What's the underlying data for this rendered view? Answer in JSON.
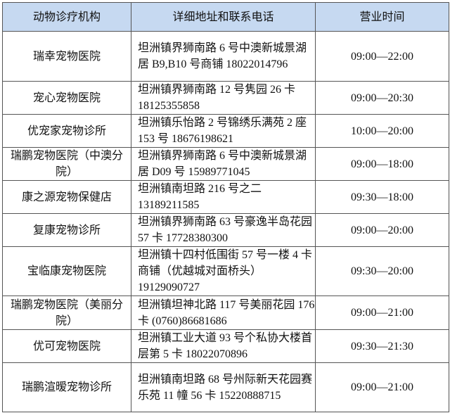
{
  "headers": [
    "动物诊疗机构",
    "详细地址和联系电话",
    "营业时间"
  ],
  "rows": [
    {
      "name": "瑞幸宠物医院",
      "address": "坦洲镇界狮南路 6 号中澳新城景湖居 B9,B10 号商铺 18022014796",
      "hours": "09:00—22:00"
    },
    {
      "name": "宠心宠物医院",
      "address": "坦洲镇界狮南路 12 号隽园 26 卡 18125355858",
      "hours": "09:00—20:30"
    },
    {
      "name": "优宠家宠物诊所",
      "address": "坦洲镇乐怡路 2 号锦绣乐满苑 2 座 153 号 18676198621",
      "hours": "10:00—20:00"
    },
    {
      "name": "瑞鹏宠物医院（中澳分院）",
      "address": "坦洲镇界狮南路 6 号中澳新城景湖居 D09 号 15989771045",
      "hours": "09:00—18:00"
    },
    {
      "name": "康之源宠物保健店",
      "address": "坦洲镇南坦路 216 号之二 13189211585",
      "hours": "09:30—18:00"
    },
    {
      "name": "复康宠物诊所",
      "address": "坦洲镇界狮南路 63 号豪逸半岛花园 57 卡 17728380300",
      "hours": "09:00—20:00"
    },
    {
      "name": "宝临康宠物医院",
      "address": "坦洲镇十四村低围街 57 号一楼 4 卡商铺（优越城对面桥头）19129090727",
      "hours": "09:30—20:00"
    },
    {
      "name": "瑞鹏宠物医院（美丽分院）",
      "address": "坦洲镇坦神北路 117 号美丽花园 176 卡 (0760)86681686",
      "hours": "09:00—21:00"
    },
    {
      "name": "优可宠物医院",
      "address": "坦洲镇工业大道 93 号个私协大楼首层第 5 卡 18022070896",
      "hours": "09:30—21:30"
    },
    {
      "name": "瑞鹏渲暧宠物诊所",
      "address": "坦洲镇南坦路 68 号州际新天花园赛乐苑 11 幢 56 卡 15220888715",
      "hours": "09:00—21:00"
    }
  ]
}
